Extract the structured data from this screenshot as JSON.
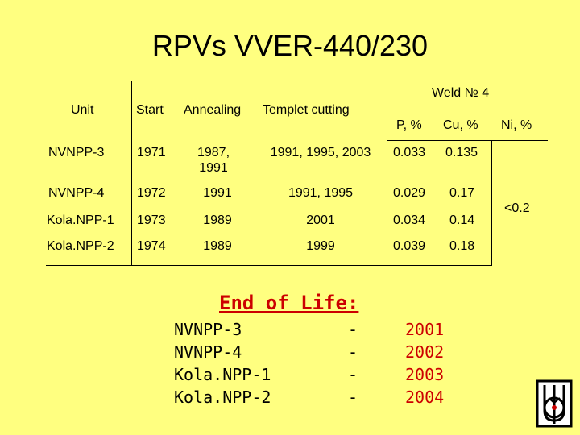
{
  "title": "RPVs VVER-440/230",
  "table": {
    "headers": {
      "unit": "Unit",
      "start": "Start",
      "annealing": "Annealing",
      "templet": "Templet cutting",
      "weld_group": "Weld № 4",
      "p": "P, %",
      "cu": "Cu, %",
      "ni": "Ni, %"
    },
    "rows": [
      {
        "unit": "NVNPP-3",
        "start": "1971",
        "annealing": "1987, 1991",
        "templet": "1991, 1995, 2003",
        "p": "0.033",
        "cu": "0.135"
      },
      {
        "unit": "NVNPP-4",
        "start": "1972",
        "annealing": "1991",
        "templet": "1991, 1995",
        "p": "0.029",
        "cu": "0.17"
      },
      {
        "unit": "Kola.NPP-1",
        "start": "1973",
        "annealing": "1989",
        "templet": "2001",
        "p": "0.034",
        "cu": "0.14"
      },
      {
        "unit": "Kola.NPP-2",
        "start": "1974",
        "annealing": "1989",
        "templet": "1999",
        "p": "0.039",
        "cu": "0.18"
      }
    ],
    "ni_value": "<0.2"
  },
  "end_of_life": {
    "heading": "End of Life:",
    "items": [
      {
        "unit": "NVNPP-3",
        "dash": "-",
        "year": "2001"
      },
      {
        "unit": "NVNPP-4",
        "dash": "-",
        "year": "2002"
      },
      {
        "unit": "Kola.NPP-1",
        "dash": "-",
        "year": "2003"
      },
      {
        "unit": "Kola.NPP-2",
        "dash": "-",
        "year": "2004"
      }
    ]
  },
  "colors": {
    "background": "#ffff80",
    "accent": "#cc0000"
  },
  "logo_icon": "institute-logo-icon"
}
